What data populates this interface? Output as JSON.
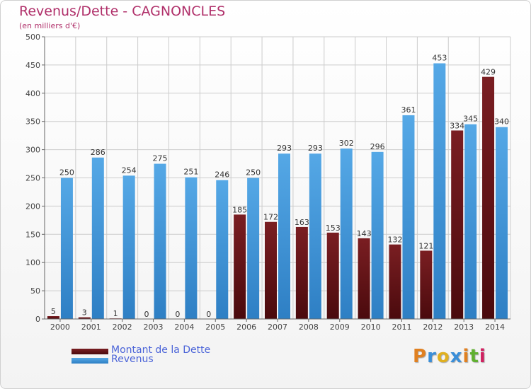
{
  "title": "Revenus/Dette - CAGNONCLES",
  "subtitle": "(en milliers d'€)",
  "logo_letters": [
    {
      "ch": "P",
      "color": "#e08020"
    },
    {
      "ch": "r",
      "color": "#3a8ed8"
    },
    {
      "ch": "o",
      "color": "#e0b020"
    },
    {
      "ch": "x",
      "color": "#3a8ed8"
    },
    {
      "ch": "i",
      "color": "#e08020"
    },
    {
      "ch": "t",
      "color": "#60b030"
    },
    {
      "ch": "i",
      "color": "#d02060"
    }
  ],
  "legend": {
    "debt_label": "Montant de la Dette",
    "revenue_label": "Revenus"
  },
  "colors": {
    "debt": "#7a1e22",
    "debt_dark": "#4a0a0d",
    "revenue": "#55a8e6",
    "revenue_dark": "#2e7fc4",
    "grid": "#cccccc",
    "axis": "#666666"
  },
  "chart_data": {
    "type": "bar",
    "title": "Revenus/Dette - CAGNONCLES",
    "subtitle": "(en milliers d'€)",
    "categories": [
      "2000",
      "2001",
      "2002",
      "2003",
      "2004",
      "2005",
      "2006",
      "2007",
      "2008",
      "2009",
      "2010",
      "2011",
      "2012",
      "2013",
      "2014"
    ],
    "series": [
      {
        "name": "Montant de la Dette",
        "values": [
          5,
          3,
          1,
          0,
          0,
          0,
          185,
          172,
          163,
          153,
          143,
          132,
          121,
          334,
          429
        ]
      },
      {
        "name": "Revenus",
        "values": [
          250,
          286,
          254,
          275,
          251,
          246,
          250,
          293,
          293,
          302,
          296,
          361,
          453,
          345,
          340
        ]
      }
    ],
    "ylim": [
      0,
      500
    ],
    "yticks": [
      0,
      50,
      100,
      150,
      200,
      250,
      300,
      350,
      400,
      450,
      500
    ],
    "grid": true,
    "legend_position": "bottom-left"
  }
}
